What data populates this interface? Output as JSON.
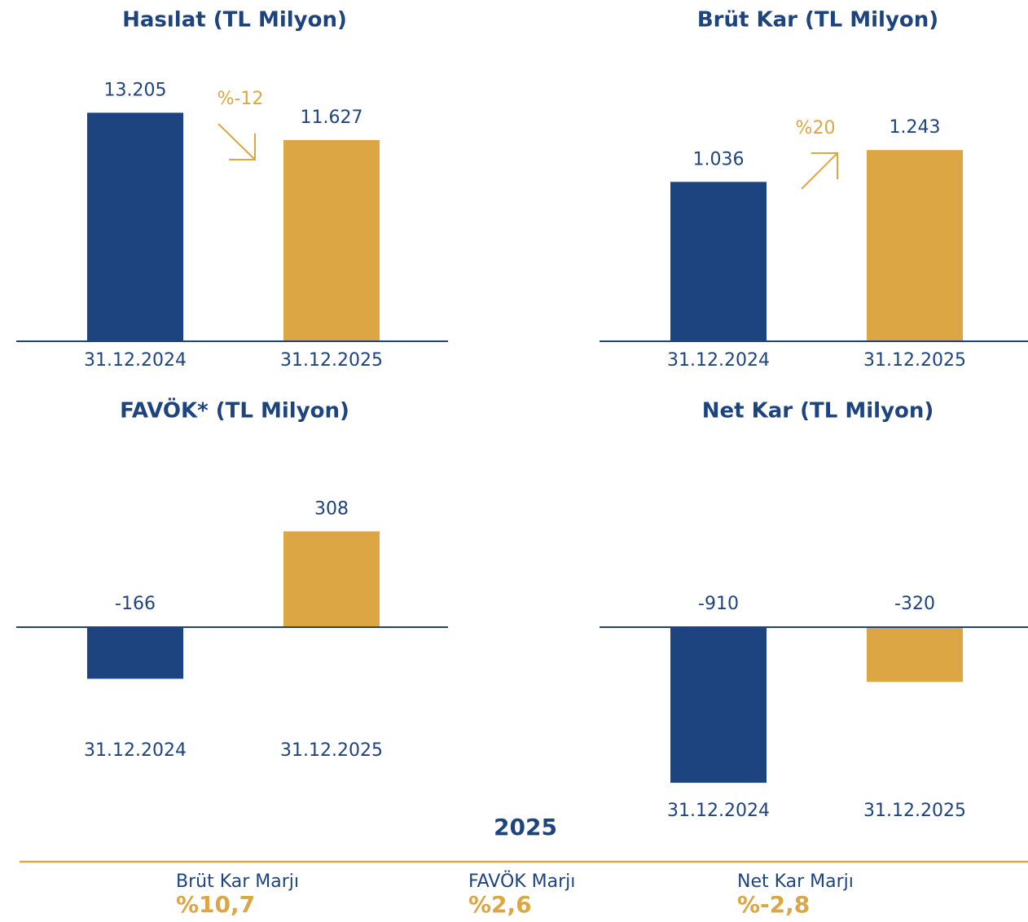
{
  "chart_data": [
    {
      "type": "bar",
      "title": "Hasılat (TL Milyon)",
      "categories": [
        "31.12.2024",
        "31.12.2025"
      ],
      "values": [
        13205,
        11627
      ],
      "value_labels": [
        "13.205",
        "11.627"
      ],
      "colors": [
        "#1e4480",
        "#dba643"
      ],
      "annotation": "%-12",
      "ylim": [
        0,
        16000
      ]
    },
    {
      "type": "bar",
      "title": "Brüt Kar (TL Milyon)",
      "categories": [
        "31.12.2024",
        "31.12.2025"
      ],
      "values": [
        1036,
        1243
      ],
      "value_labels": [
        "1.036",
        "1.243"
      ],
      "colors": [
        "#1e4480",
        "#dba643"
      ],
      "annotation": "%20",
      "ylim": [
        0,
        1800
      ]
    },
    {
      "type": "bar",
      "title": "FAVÖK* (TL Milyon)",
      "categories": [
        "31.12.2024",
        "31.12.2025"
      ],
      "values": [
        -166,
        308
      ],
      "colors": [
        "#1e4480",
        "#dba643"
      ],
      "ylim": [
        -550,
        550
      ]
    },
    {
      "type": "bar",
      "title": "Net Kar (TL Milyon)",
      "categories": [
        "31.12.2024",
        "31.12.2025"
      ],
      "values": [
        -910,
        -320
      ],
      "colors": [
        "#1e4480",
        "#dba643"
      ],
      "ylim": [
        -1000,
        1000
      ]
    }
  ],
  "summary": {
    "year": "2025",
    "items": [
      {
        "label": "Brüt Kar Marjı",
        "value": "%10,7"
      },
      {
        "label": "FAVÖK Marjı",
        "value": "%2,6"
      },
      {
        "label": "Net Kar Marjı",
        "value": "%-2,8"
      }
    ]
  }
}
